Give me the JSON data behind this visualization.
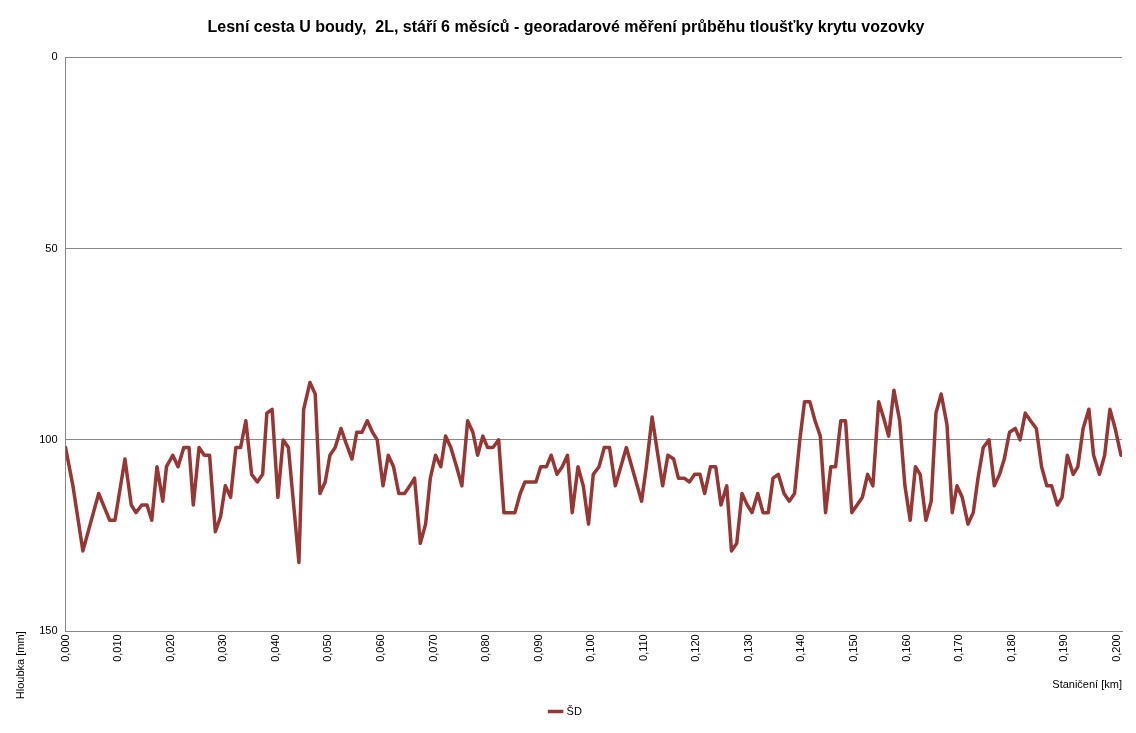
{
  "chart_data": {
    "type": "line",
    "title": "Lesní cesta U boudy,  2L, stáří 6 měsíců - georadarové měření průběhu tloušťky krytu vozovky",
    "xlabel": "Staničení [km]",
    "ylabel": "Hloubka [mm]",
    "xlim": [
      0,
      0.201
    ],
    "xticks": [
      {
        "value": 0,
        "label": "0,000"
      },
      {
        "value": 0.01,
        "label": "0,010"
      },
      {
        "value": 0.02,
        "label": "0,020"
      },
      {
        "value": 0.03,
        "label": "0,030"
      },
      {
        "value": 0.04,
        "label": "0,040"
      },
      {
        "value": 0.05,
        "label": "0,050"
      },
      {
        "value": 0.06,
        "label": "0,060"
      },
      {
        "value": 0.07,
        "label": "0,070"
      },
      {
        "value": 0.08,
        "label": "0,080"
      },
      {
        "value": 0.09,
        "label": "0,090"
      },
      {
        "value": 0.1,
        "label": "0,100"
      },
      {
        "value": 0.11,
        "label": "0,110"
      },
      {
        "value": 0.12,
        "label": "0,120"
      },
      {
        "value": 0.13,
        "label": "0,130"
      },
      {
        "value": 0.14,
        "label": "0,140"
      },
      {
        "value": 0.15,
        "label": "0,150"
      },
      {
        "value": 0.16,
        "label": "0,160"
      },
      {
        "value": 0.17,
        "label": "0,170"
      },
      {
        "value": 0.18,
        "label": "0,180"
      },
      {
        "value": 0.19,
        "label": "0,190"
      },
      {
        "value": 0.2,
        "label": "0,200"
      }
    ],
    "ylim": [
      150,
      0
    ],
    "yticks": [
      0,
      50,
      100,
      150
    ],
    "grid": "y",
    "legend": "bottom",
    "marker": "none",
    "line_style": "solid",
    "x": [
      0,
      0.0014,
      0.0033,
      0.0063,
      0.0084,
      0.0094,
      0.0113,
      0.0125,
      0.0134,
      0.0145,
      0.0155,
      0.0164,
      0.0174,
      0.0185,
      0.0192,
      0.0204,
      0.0214,
      0.0225,
      0.0235,
      0.0243,
      0.0254,
      0.0264,
      0.0274,
      0.0285,
      0.0295,
      0.0304,
      0.0314,
      0.0324,
      0.0333,
      0.0343,
      0.0354,
      0.0365,
      0.0375,
      0.0383,
      0.0393,
      0.0404,
      0.0414,
      0.0424,
      0.0444,
      0.0453,
      0.0465,
      0.0475,
      0.0484,
      0.0494,
      0.0503,
      0.0513,
      0.0524,
      0.0534,
      0.0545,
      0.0554,
      0.0564,
      0.0574,
      0.0584,
      0.0593,
      0.0604,
      0.0614,
      0.0624,
      0.0634,
      0.0645,
      0.0655,
      0.0664,
      0.0675,
      0.0685,
      0.0694,
      0.0704,
      0.0714,
      0.0723,
      0.0733,
      0.0744,
      0.0754,
      0.0765,
      0.0775,
      0.0784,
      0.0794,
      0.0803,
      0.0813,
      0.0824,
      0.0834,
      0.0855,
      0.0865,
      0.0874,
      0.0895,
      0.0904,
      0.0915,
      0.0924,
      0.0935,
      0.0945,
      0.0955,
      0.0964,
      0.0975,
      0.0985,
      0.0995,
      0.1004,
      0.1015,
      0.1025,
      0.1035,
      0.1046,
      0.1067,
      0.1096,
      0.1105,
      0.1116,
      0.1127,
      0.1136,
      0.1146,
      0.1157,
      0.1166,
      0.1177,
      0.1187,
      0.1197,
      0.1207,
      0.1216,
      0.1227,
      0.1237,
      0.1247,
      0.1258,
      0.1267,
      0.1277,
      0.1287,
      0.1297,
      0.1306,
      0.1317,
      0.1327,
      0.1337,
      0.1346,
      0.1356,
      0.1367,
      0.1377,
      0.1387,
      0.1397,
      0.1406,
      0.1416,
      0.1426,
      0.1436,
      0.1446,
      0.1456,
      0.1465,
      0.1475,
      0.1484,
      0.1496,
      0.1506,
      0.1516,
      0.1526,
      0.1536,
      0.1547,
      0.1556,
      0.1566,
      0.1576,
      0.1587,
      0.1597,
      0.1607,
      0.1617,
      0.1626,
      0.1637,
      0.1647,
      0.1656,
      0.1666,
      0.1677,
      0.1687,
      0.1696,
      0.1706,
      0.1717,
      0.1727,
      0.1736,
      0.1746,
      0.1757,
      0.1767,
      0.1777,
      0.1786,
      0.1796,
      0.1807,
      0.1816,
      0.1826,
      0.1836,
      0.1847,
      0.1857,
      0.1867,
      0.1876,
      0.1887,
      0.1896,
      0.1906,
      0.1917,
      0.1926,
      0.1936,
      0.1947,
      0.1956,
      0.1967,
      0.1977,
      0.1987,
      0.1997,
      0.2008
    ],
    "series": [
      {
        "name": "ŠD",
        "color": "#953735",
        "values": [
          102,
          112,
          129,
          114,
          121,
          121,
          105,
          117,
          119,
          117,
          117,
          121,
          107,
          116,
          107,
          104,
          107,
          102,
          102,
          117,
          102,
          104,
          104,
          124,
          120,
          112,
          115,
          102,
          102,
          95,
          109,
          111,
          109,
          93,
          92,
          115,
          100,
          102,
          132,
          92,
          85,
          88,
          114,
          111,
          104,
          102,
          97,
          101,
          105,
          98,
          98,
          95,
          98,
          100,
          112,
          104,
          107,
          114,
          114,
          112,
          110,
          127,
          122,
          110,
          104,
          107,
          99,
          102,
          107,
          112,
          95,
          98,
          104,
          99,
          102,
          102,
          100,
          119,
          119,
          114,
          111,
          111,
          107,
          107,
          104,
          109,
          107,
          104,
          119,
          107,
          112,
          122,
          109,
          107,
          102,
          102,
          112,
          102,
          116,
          107,
          94,
          104,
          112,
          104,
          105,
          110,
          110,
          111,
          109,
          109,
          114,
          107,
          107,
          117,
          112,
          129,
          127,
          114,
          117,
          119,
          114,
          119,
          119,
          110,
          109,
          114,
          116,
          114,
          100,
          90,
          90,
          95,
          99,
          119,
          107,
          107,
          95,
          95,
          119,
          117,
          115,
          109,
          112,
          90,
          94,
          99,
          87,
          95,
          112,
          121,
          107,
          109,
          121,
          116,
          93,
          88,
          96,
          119,
          112,
          115,
          122,
          119,
          110,
          102,
          100,
          112,
          109,
          105,
          98,
          97,
          100,
          93,
          95,
          97,
          107,
          112,
          112,
          117,
          115,
          104,
          109,
          107,
          97,
          92,
          104,
          109,
          104,
          92,
          97,
          104
        ]
      }
    ]
  }
}
